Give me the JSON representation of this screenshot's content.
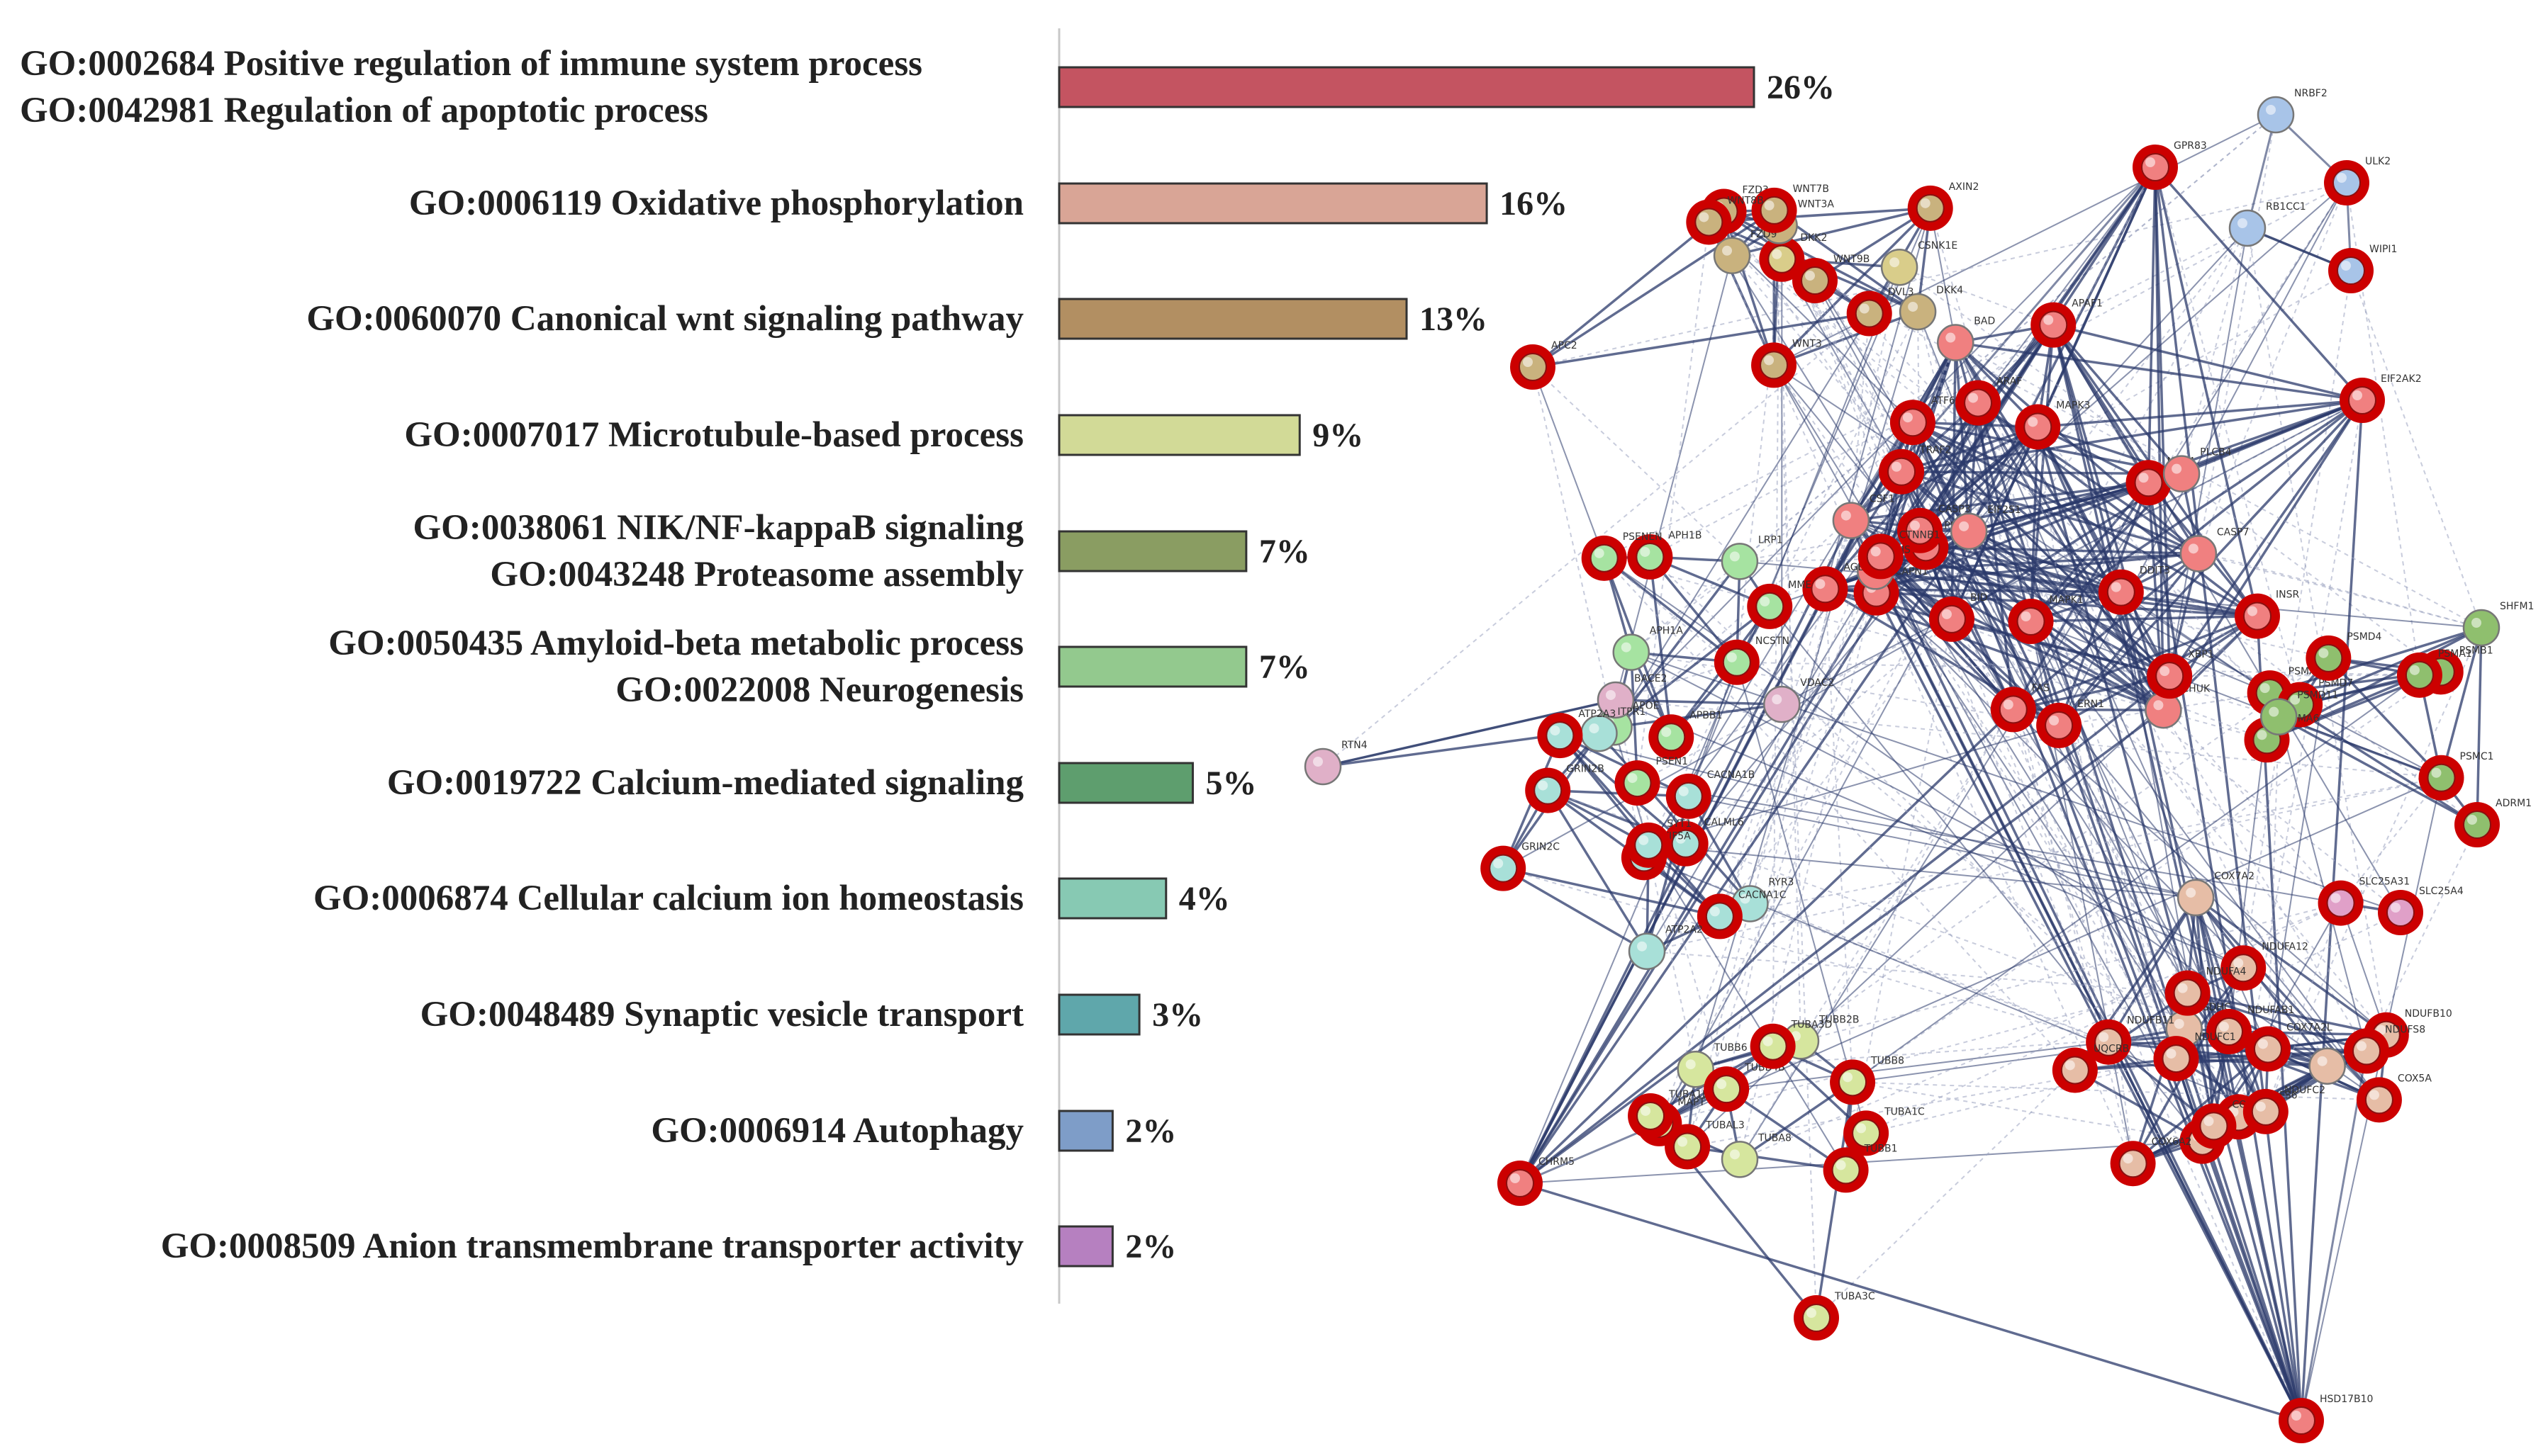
{
  "chart_data": {
    "type": "bar",
    "orientation": "horizontal",
    "xlabel": "",
    "ylabel": "",
    "grid": false,
    "legend": "none",
    "x_range_percent": [
      0,
      30
    ],
    "bars": [
      {
        "labels": [
          "GO:0002684 Positive regulation of immune system process",
          "GO:0042981 Regulation of apoptotic process"
        ],
        "value": 26,
        "value_label": "26%",
        "color": "#c45461"
      },
      {
        "labels": [
          "GO:0006119 Oxidative phosphorylation"
        ],
        "value": 16,
        "value_label": "16%",
        "color": "#d9a596"
      },
      {
        "labels": [
          "GO:0060070 Canonical wnt signaling pathway"
        ],
        "value": 13,
        "value_label": "13%",
        "color": "#b28f62"
      },
      {
        "labels": [
          "GO:0007017 Microtubule-based process"
        ],
        "value": 9,
        "value_label": "9%",
        "color": "#d2da97"
      },
      {
        "labels": [
          "GO:0038061 NIK/NF-kappaB signaling",
          "GO:0043248 Proteasome assembly"
        ],
        "value": 7,
        "value_label": "7%",
        "color": "#8a9d62"
      },
      {
        "labels": [
          "GO:0050435 Amyloid-beta metabolic process",
          "GO:0022008 Neurogenesis"
        ],
        "value": 7,
        "value_label": "7%",
        "color": "#93c98e"
      },
      {
        "labels": [
          "GO:0019722 Calcium-mediated signaling"
        ],
        "value": 5,
        "value_label": "5%",
        "color": "#5e9e6e"
      },
      {
        "labels": [
          "GO:0006874 Cellular calcium ion homeostasis"
        ],
        "value": 4,
        "value_label": "4%",
        "color": "#87c9b3"
      },
      {
        "labels": [
          "GO:0048489 Synaptic vesicle transport"
        ],
        "value": 3,
        "value_label": "3%",
        "color": "#5fa7ab"
      },
      {
        "labels": [
          "GO:0006914 Autophagy"
        ],
        "value": 2,
        "value_label": "2%",
        "color": "#7e9dc8"
      },
      {
        "labels": [
          "GO:0008509 Anion transmembrane transporter activity"
        ],
        "value": 2,
        "value_label": "2%",
        "color": "#b680c0"
      }
    ],
    "network": {
      "type": "protein-interaction-network",
      "highlight_ring_color": "#cc0000",
      "edge_color": "#2b3a6b",
      "nodes": [
        {
          "name": "NRBF2",
          "c": "#a8c4e8",
          "hl": false
        },
        {
          "name": "ULK2",
          "c": "#a8c4e8",
          "hl": true
        },
        {
          "name": "RB1CC1",
          "c": "#a8c4e8",
          "hl": false
        },
        {
          "name": "WIPI1",
          "c": "#a8c4e8",
          "hl": true
        },
        {
          "name": "GPR83",
          "c": "#f08080",
          "hl": true
        },
        {
          "name": "CSF1",
          "c": "#f08080",
          "hl": false
        },
        {
          "name": "CSNK1E",
          "c": "#d9cd8a",
          "hl": false
        },
        {
          "name": "DKK2",
          "c": "#d9cd8a",
          "hl": true
        },
        {
          "name": "DKK4",
          "c": "#c9b27e",
          "hl": false
        },
        {
          "name": "FZD3",
          "c": "#c9b27e",
          "hl": true
        },
        {
          "name": "WNT3",
          "c": "#c9b27e",
          "hl": true
        },
        {
          "name": "WNT3A",
          "c": "#c9b27e",
          "hl": false
        },
        {
          "name": "FZD9",
          "c": "#c9b27e",
          "hl": false
        },
        {
          "name": "WNT7B",
          "c": "#c9b27e",
          "hl": true
        },
        {
          "name": "WNT8B",
          "c": "#c9b27e",
          "hl": true
        },
        {
          "name": "WNT9B",
          "c": "#c9b27e",
          "hl": true
        },
        {
          "name": "AXIN2",
          "c": "#c9b27e",
          "hl": true
        },
        {
          "name": "DVL3",
          "c": "#c9b27e",
          "hl": true
        },
        {
          "name": "APC2",
          "c": "#c9b27e",
          "hl": true
        },
        {
          "name": "NOX4",
          "c": "#f08080",
          "hl": true
        },
        {
          "name": "CAPN1",
          "c": "#f08080",
          "hl": true
        },
        {
          "name": "ARAF",
          "c": "#f08080",
          "hl": true
        },
        {
          "name": "CHUK",
          "c": "#f08080",
          "hl": false
        },
        {
          "name": "PIK3R2",
          "c": "#f08080",
          "hl": true
        },
        {
          "name": "TRAF2",
          "c": "#f08080",
          "hl": true
        },
        {
          "name": "XBP1",
          "c": "#f08080",
          "hl": true
        },
        {
          "name": "EIF2AK2",
          "c": "#f08080",
          "hl": true
        },
        {
          "name": "BID",
          "c": "#f08080",
          "hl": true
        },
        {
          "name": "INSR",
          "c": "#f08080",
          "hl": true
        },
        {
          "name": "ERN1",
          "c": "#f08080",
          "hl": true
        },
        {
          "name": "CASP3",
          "c": "#f08080",
          "hl": true
        },
        {
          "name": "ATF6",
          "c": "#f08080",
          "hl": true
        },
        {
          "name": "APAF1",
          "c": "#f08080",
          "hl": true
        },
        {
          "name": "DDIT3",
          "c": "#f08080",
          "hl": true
        },
        {
          "name": "EIF2S1",
          "c": "#f08080",
          "hl": false
        },
        {
          "name": "CASP7",
          "c": "#f08080",
          "hl": false
        },
        {
          "name": "BAD",
          "c": "#f08080",
          "hl": false
        },
        {
          "name": "PLCB4",
          "c": "#f08080",
          "hl": false
        },
        {
          "name": "INS",
          "c": "#f08080",
          "hl": false
        },
        {
          "name": "AGER",
          "c": "#f08080",
          "hl": true
        },
        {
          "name": "CTNNB1",
          "c": "#f08080",
          "hl": true
        },
        {
          "name": "MAPK1",
          "c": "#f08080",
          "hl": true
        },
        {
          "name": "MAPK3",
          "c": "#f08080",
          "hl": true
        },
        {
          "name": "FAS",
          "c": "#f08080",
          "hl": true
        },
        {
          "name": "LRP1",
          "c": "#a6e3a1",
          "hl": false
        },
        {
          "name": "MME",
          "c": "#a6e3a1",
          "hl": true
        },
        {
          "name": "APH1B",
          "c": "#a6e3a1",
          "hl": true
        },
        {
          "name": "APH1A",
          "c": "#a6e3a1",
          "hl": false
        },
        {
          "name": "APOE",
          "c": "#a6e3a1",
          "hl": false
        },
        {
          "name": "APBB1",
          "c": "#a6e3a1",
          "hl": true
        },
        {
          "name": "PSENEN",
          "c": "#a6e3a1",
          "hl": true
        },
        {
          "name": "PSEN1",
          "c": "#a6e3a1",
          "hl": true
        },
        {
          "name": "NCSTN",
          "c": "#a6e3a1",
          "hl": true
        },
        {
          "name": "BACE2",
          "c": "#e0b0c8",
          "hl": false
        },
        {
          "name": "RTN4",
          "c": "#e0b0c8",
          "hl": false
        },
        {
          "name": "RYR3",
          "c": "#a8e0d8",
          "hl": false
        },
        {
          "name": "GRIN2C",
          "c": "#a8e0d8",
          "hl": true
        },
        {
          "name": "GRIN2B",
          "c": "#a8e0d8",
          "hl": true
        },
        {
          "name": "CACNA1C",
          "c": "#a8e0d8",
          "hl": true
        },
        {
          "name": "CACNA1B",
          "c": "#a8e0d8",
          "hl": true
        },
        {
          "name": "CALML6",
          "c": "#a8e0d8",
          "hl": true
        },
        {
          "name": "ITPR1",
          "c": "#a8e0d8",
          "hl": false
        },
        {
          "name": "ATP2A3",
          "c": "#a8e0d8",
          "hl": true
        },
        {
          "name": "ATP2A2",
          "c": "#a8e0d8",
          "hl": false
        },
        {
          "name": "KIF5A",
          "c": "#a8e0d8",
          "hl": true
        },
        {
          "name": "SYT1",
          "c": "#a8e0d8",
          "hl": true
        },
        {
          "name": "MAPT",
          "c": "#d6e69e",
          "hl": true
        },
        {
          "name": "VDAC2",
          "c": "#e0b0c8",
          "hl": false
        },
        {
          "name": "SDHC",
          "c": "#e6bda6",
          "hl": false
        },
        {
          "name": "SDHB",
          "c": "#e6bda6",
          "hl": true
        },
        {
          "name": "COX4I1",
          "c": "#e6bda6",
          "hl": false
        },
        {
          "name": "NDUFS6",
          "c": "#e6bda6",
          "hl": true
        },
        {
          "name": "NDUFA12",
          "c": "#e6bda6",
          "hl": true
        },
        {
          "name": "NDUFAB1",
          "c": "#e6bda6",
          "hl": true
        },
        {
          "name": "NDUFA4",
          "c": "#e6bda6",
          "hl": true
        },
        {
          "name": "NDUFC1",
          "c": "#e6bda6",
          "hl": true
        },
        {
          "name": "NDUFB11",
          "c": "#e6bda6",
          "hl": true
        },
        {
          "name": "NDUFB10",
          "c": "#e6bda6",
          "hl": true
        },
        {
          "name": "UQCRB",
          "c": "#e6bda6",
          "hl": true
        },
        {
          "name": "COX6A2",
          "c": "#e6bda6",
          "hl": true
        },
        {
          "name": "COX7A2",
          "c": "#e6bda6",
          "hl": false
        },
        {
          "name": "COX7A1",
          "c": "#e6bda6",
          "hl": true
        },
        {
          "name": "COX5A",
          "c": "#e6bda6",
          "hl": true
        },
        {
          "name": "COX7A2L",
          "c": "#e6bda6",
          "hl": true
        },
        {
          "name": "NDUFC2",
          "c": "#e6bda6",
          "hl": true
        },
        {
          "name": "NDUFS8",
          "c": "#e6bda6",
          "hl": true
        },
        {
          "name": "SLC25A31",
          "c": "#e0a0c8",
          "hl": true
        },
        {
          "name": "SLC25A4",
          "c": "#e0a0c8",
          "hl": true
        },
        {
          "name": "PSMA8",
          "c": "#8fbf6e",
          "hl": true
        },
        {
          "name": "SHFM1",
          "c": "#8fbf6e",
          "hl": false
        },
        {
          "name": "PSMD7",
          "c": "#8fbf6e",
          "hl": true
        },
        {
          "name": "PSMC1",
          "c": "#8fbf6e",
          "hl": true
        },
        {
          "name": "PSMD4",
          "c": "#8fbf6e",
          "hl": true
        },
        {
          "name": "PSMB1",
          "c": "#8fbf6e",
          "hl": true
        },
        {
          "name": "PSMA6",
          "c": "#8fbf6e",
          "hl": true
        },
        {
          "name": "PSMA1",
          "c": "#8fbf6e",
          "hl": true
        },
        {
          "name": "PSMD11",
          "c": "#8fbf6e",
          "hl": false
        },
        {
          "name": "ADRM1",
          "c": "#8fbf6e",
          "hl": true
        },
        {
          "name": "TUBB2B",
          "c": "#d6e69e",
          "hl": false
        },
        {
          "name": "TUBA1B",
          "c": "#d6e69e",
          "hl": true
        },
        {
          "name": "TUBB6",
          "c": "#d6e69e",
          "hl": false
        },
        {
          "name": "TUBA8",
          "c": "#d6e69e",
          "hl": false
        },
        {
          "name": "TUBA1C",
          "c": "#d6e69e",
          "hl": true
        },
        {
          "name": "TUBB4B",
          "c": "#d6e69e",
          "hl": true
        },
        {
          "name": "TUBA3D",
          "c": "#d6e69e",
          "hl": true
        },
        {
          "name": "TUBAL3",
          "c": "#d6e69e",
          "hl": true
        },
        {
          "name": "TUBB8",
          "c": "#d6e69e",
          "hl": true
        },
        {
          "name": "TUBB1",
          "c": "#d6e69e",
          "hl": true
        },
        {
          "name": "TUBA3C",
          "c": "#d6e69e",
          "hl": true
        },
        {
          "name": "CHRM5",
          "c": "#f08080",
          "hl": true
        },
        {
          "name": "HSD17B10",
          "c": "#f08080",
          "hl": true
        }
      ]
    }
  }
}
